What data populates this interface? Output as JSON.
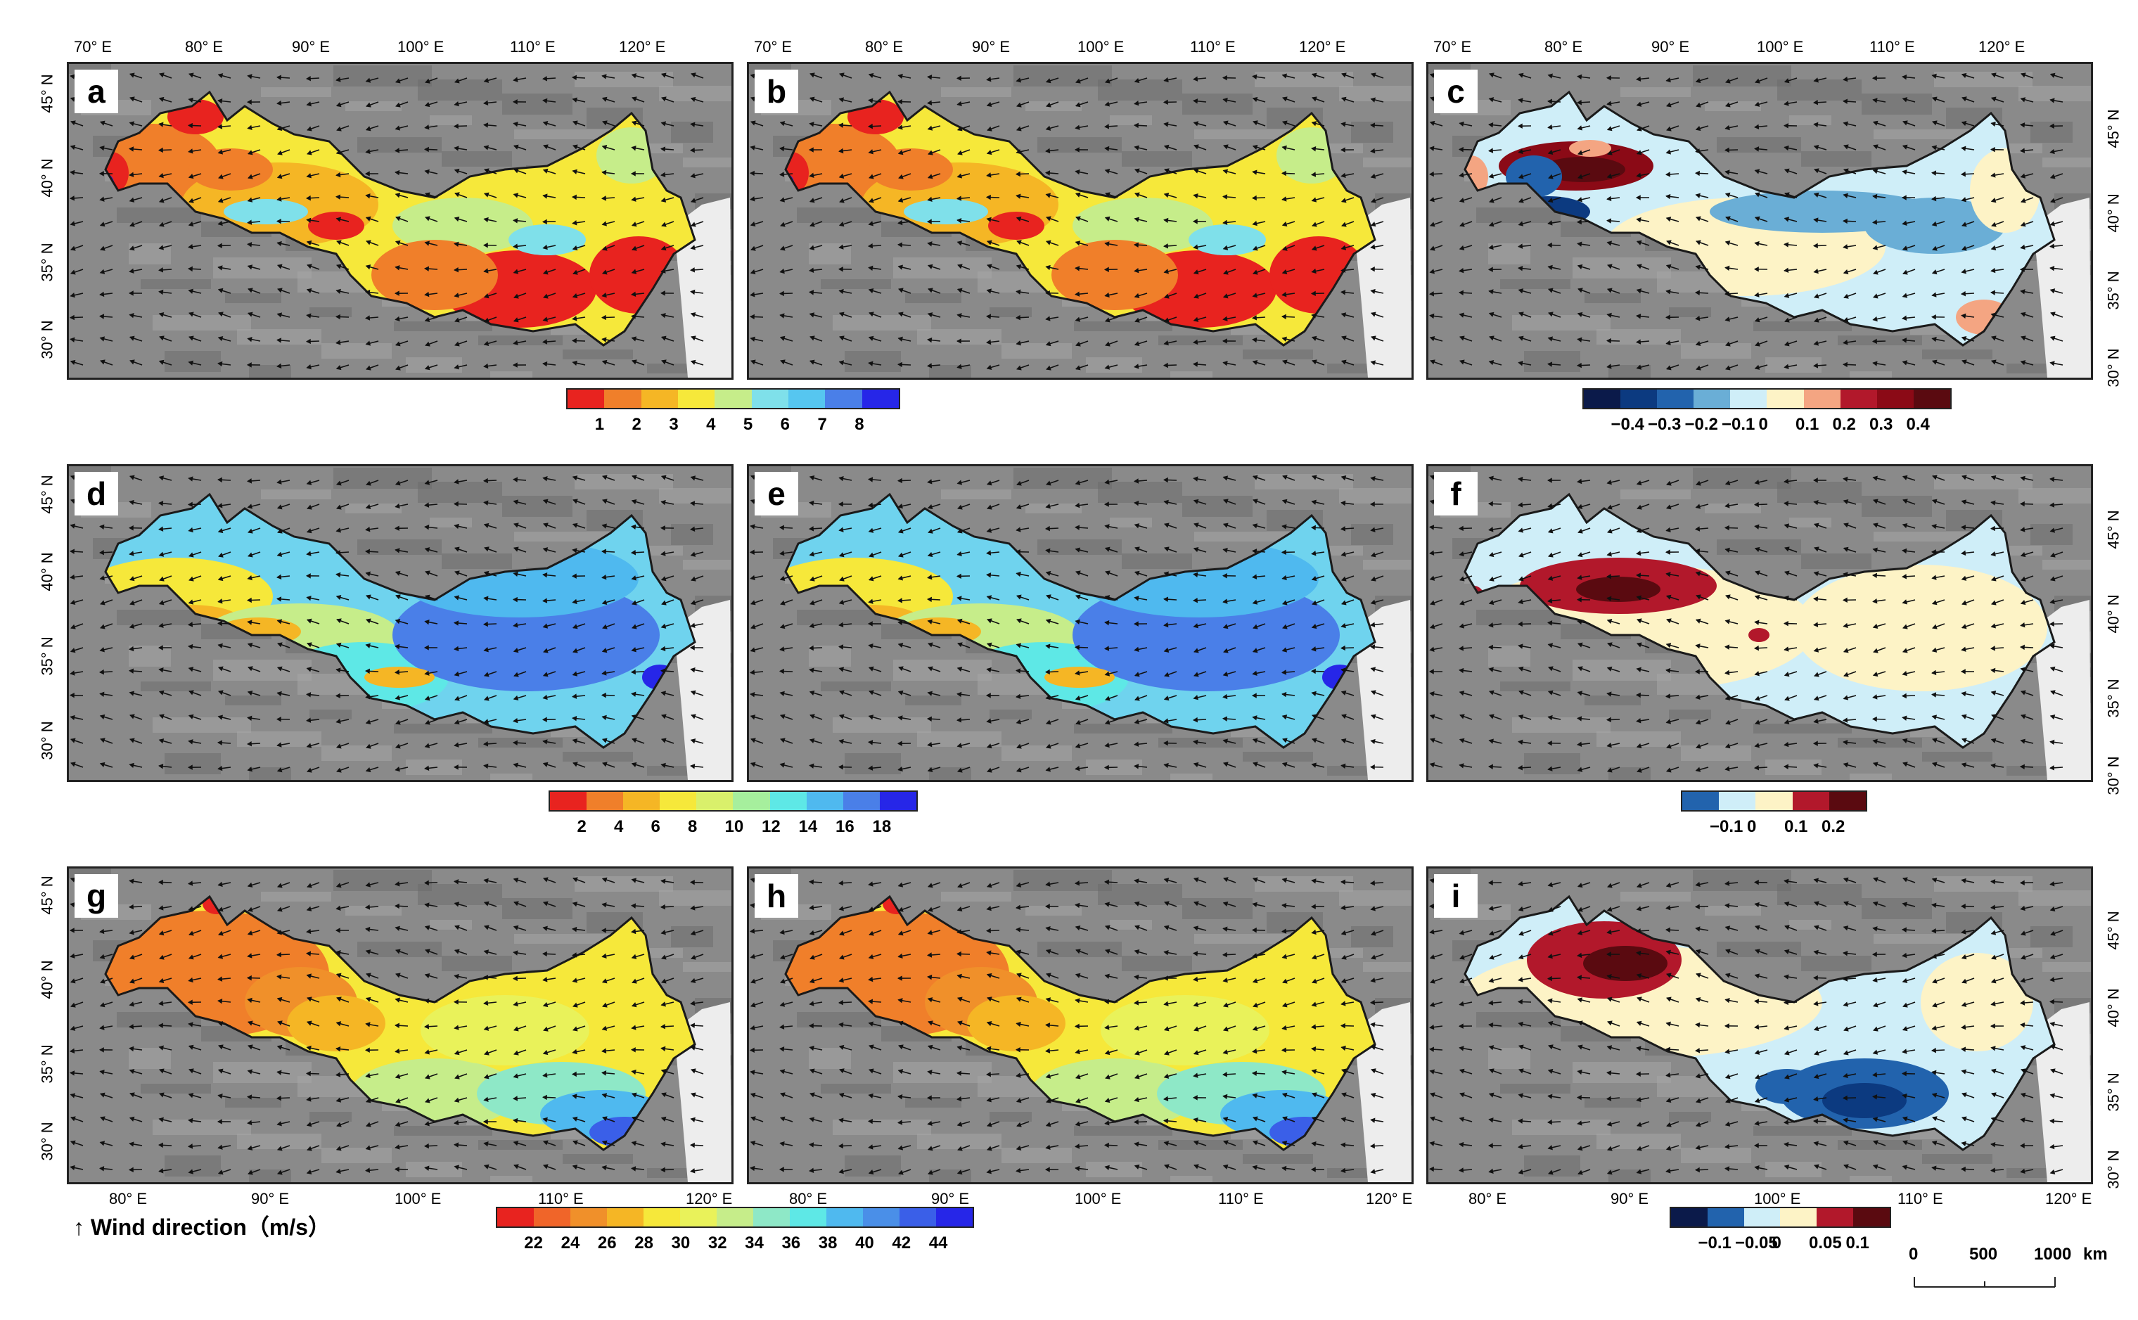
{
  "panels": [
    {
      "id": "a",
      "label": "a",
      "scheme": "speed1"
    },
    {
      "id": "b",
      "label": "b",
      "scheme": "speed1"
    },
    {
      "id": "c",
      "label": "c",
      "scheme": "diff1"
    },
    {
      "id": "d",
      "label": "d",
      "scheme": "speed2"
    },
    {
      "id": "e",
      "label": "e",
      "scheme": "speed2"
    },
    {
      "id": "f",
      "label": "f",
      "scheme": "diff2"
    },
    {
      "id": "g",
      "label": "g",
      "scheme": "speed3"
    },
    {
      "id": "h",
      "label": "h",
      "scheme": "speed3"
    },
    {
      "id": "i",
      "label": "i",
      "scheme": "diff3"
    }
  ],
  "axes": {
    "row1_lon": [
      "70° E",
      "80° E",
      "90° E",
      "100° E",
      "110° E",
      "120° E"
    ],
    "row3_lon": [
      "80° E",
      "90° E",
      "100° E",
      "110° E",
      "120° E"
    ],
    "left_lat_row1": [
      "45° N",
      "40° N",
      "35° N",
      "30° N"
    ],
    "left_lat_row2": [
      "45° N",
      "40° N",
      "35° N",
      "30° N"
    ],
    "left_lat_row3": [
      "45° N",
      "40° N",
      "35° N",
      "30° N"
    ],
    "right_lat_row1": [
      "45° N",
      "40° N",
      "35° N",
      "30° N"
    ],
    "right_lat_row2": [
      "45° N",
      "40° N",
      "35° N",
      "30° N"
    ],
    "right_lat_row3": [
      "45° N",
      "40° N",
      "35° N",
      "30° N"
    ]
  },
  "colorbars": {
    "cb1": {
      "colors": [
        "#e8231f",
        "#f07f2a",
        "#f5b625",
        "#f6e83a",
        "#c6ed8a",
        "#7fe0ea",
        "#56c6f0",
        "#4a7fe8",
        "#2626e8"
      ],
      "ticks": [
        "1",
        "2",
        "3",
        "4",
        "5",
        "6",
        "7",
        "8"
      ]
    },
    "cb2": {
      "colors": [
        "#0b1a4a",
        "#0c3a80",
        "#2263ad",
        "#6aaed6",
        "#cfeef8",
        "#fdf3c6",
        "#f4a582",
        "#b2182b",
        "#8b0a16",
        "#5a0a10"
      ],
      "ticks": [
        "−0.4",
        "−0.3",
        "−0.2",
        "−0.1",
        "0",
        "0.1",
        "0.2",
        "0.3",
        "0.4"
      ]
    },
    "cb3": {
      "colors": [
        "#e8231f",
        "#f07f2a",
        "#f5b625",
        "#f6e83a",
        "#d9f06b",
        "#a6ef9d",
        "#5ee8e6",
        "#4fb9ef",
        "#4a7fe8",
        "#2626e8"
      ],
      "ticks": [
        "2",
        "4",
        "6",
        "8",
        "10",
        "12",
        "14",
        "16",
        "18"
      ]
    },
    "cb4": {
      "colors": [
        "#2263ad",
        "#cfeef8",
        "#fdf3c6",
        "#b2182b",
        "#5a0a10"
      ],
      "ticks": [
        "−0.1",
        "0",
        "0.1",
        "0.2"
      ]
    },
    "cb5": {
      "colors": [
        "#e8231f",
        "#f06529",
        "#f0902a",
        "#f5b625",
        "#f6e83a",
        "#e9f25a",
        "#c6ed8a",
        "#8ee8c7",
        "#5ee8e6",
        "#4fb9ef",
        "#4a8fe8",
        "#3a5fe8",
        "#2626e8"
      ],
      "ticks": [
        "22",
        "24",
        "26",
        "28",
        "30",
        "32",
        "34",
        "36",
        "38",
        "40",
        "42",
        "44"
      ]
    },
    "cb6": {
      "colors": [
        "#0b1a4a",
        "#2263ad",
        "#cfeef8",
        "#fdf3c6",
        "#b2182b",
        "#5a0a10"
      ],
      "ticks": [
        "−0.1",
        "−0.05",
        "0",
        "0.05",
        "0.1"
      ]
    }
  },
  "legend": {
    "wind_label": "Wind direction（m/s）"
  },
  "scalebar": {
    "ticks": [
      "0",
      "500",
      "1000"
    ],
    "unit": "km"
  }
}
